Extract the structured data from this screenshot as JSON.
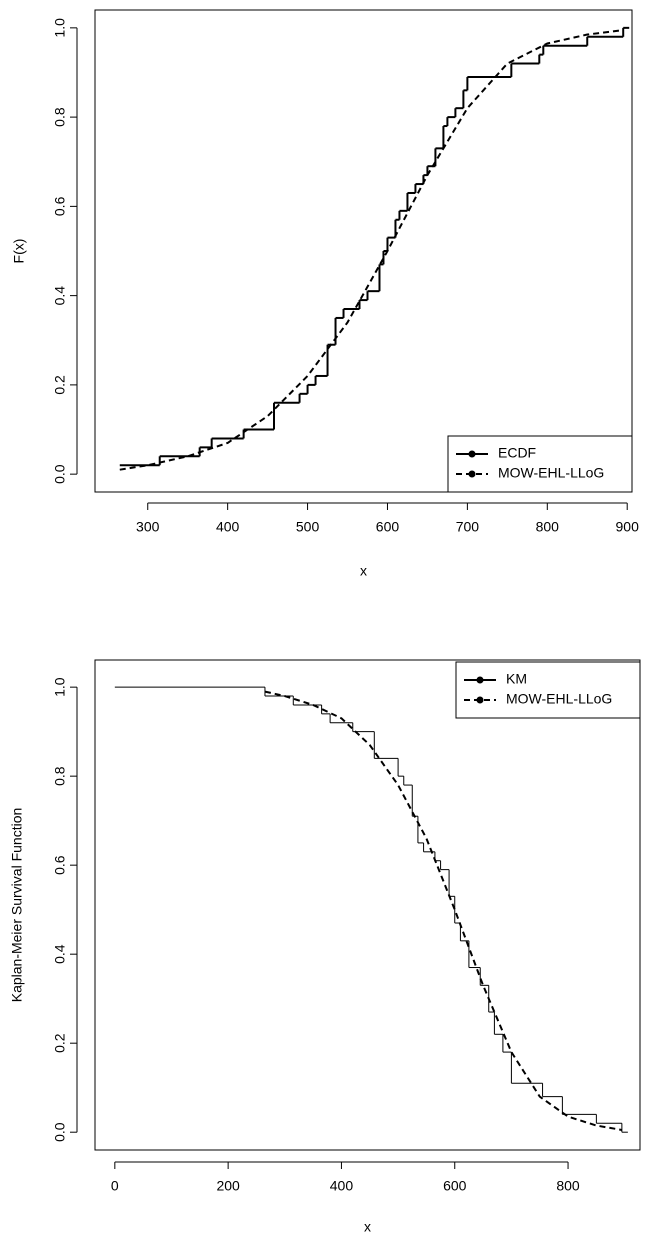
{
  "chart_data": [
    {
      "type": "line",
      "xlabel": "x",
      "ylabel": "F(x)",
      "xlim": [
        234,
        906
      ],
      "ylim": [
        -0.04,
        1.04
      ],
      "xticks": [
        300,
        400,
        500,
        600,
        700,
        800,
        900
      ],
      "yticks": [
        {
          "value": 0,
          "label": "0.0"
        },
        0.2,
        0.4,
        0.6,
        0.8,
        {
          "value": 1,
          "label": "1.0"
        }
      ],
      "legend": "bottomright",
      "series": [
        {
          "name": "ECDF",
          "color": "#000000",
          "linestyle": "solid",
          "drawstyle": "steps-post",
          "linewidth": 2,
          "x": [
            265,
            315,
            365,
            380,
            420,
            458,
            490,
            500,
            510,
            525,
            535,
            545,
            565,
            575,
            590,
            595,
            600,
            610,
            615,
            625,
            635,
            645,
            650,
            660,
            670,
            675,
            685,
            695,
            700,
            755,
            790,
            795,
            850,
            895
          ],
          "values": [
            0.02,
            0.04,
            0.06,
            0.08,
            0.1,
            0.16,
            0.18,
            0.2,
            0.22,
            0.29,
            0.35,
            0.37,
            0.39,
            0.41,
            0.47,
            0.5,
            0.53,
            0.57,
            0.59,
            0.63,
            0.65,
            0.67,
            0.69,
            0.73,
            0.78,
            0.8,
            0.82,
            0.86,
            0.89,
            0.92,
            0.94,
            0.96,
            0.98,
            1.0
          ]
        },
        {
          "name": "MOW-EHL-LLoG",
          "color": "#000000",
          "linestyle": "dashed",
          "drawstyle": "default",
          "linewidth": 2,
          "x": [
            265,
            300,
            350,
            400,
            450,
            500,
            550,
            600,
            650,
            700,
            750,
            800,
            850,
            895
          ],
          "values": [
            0.01,
            0.02,
            0.04,
            0.07,
            0.13,
            0.22,
            0.34,
            0.5,
            0.67,
            0.82,
            0.92,
            0.965,
            0.985,
            0.995
          ]
        }
      ]
    },
    {
      "type": "line",
      "xlabel": "x",
      "ylabel": "Kaplan-Meier Survival Function",
      "xlim": [
        -35,
        927
      ],
      "ylim": [
        -0.04,
        1.061
      ],
      "xticks": [
        0,
        200,
        400,
        600,
        800
      ],
      "yticks": [
        {
          "value": 0,
          "label": "0.0"
        },
        0.2,
        0.4,
        0.6,
        0.8,
        {
          "value": 1,
          "label": "1.0"
        }
      ],
      "legend": "topright",
      "series": [
        {
          "name": "KM",
          "color": "#000000",
          "linestyle": "solid",
          "drawstyle": "steps-post",
          "linewidth": 1,
          "x": [
            0,
            265,
            315,
            365,
            380,
            420,
            458,
            500,
            510,
            525,
            535,
            545,
            565,
            575,
            590,
            600,
            610,
            625,
            645,
            660,
            670,
            685,
            700,
            755,
            790,
            850,
            895
          ],
          "values": [
            1.0,
            0.98,
            0.96,
            0.94,
            0.92,
            0.9,
            0.84,
            0.8,
            0.78,
            0.71,
            0.65,
            0.63,
            0.61,
            0.59,
            0.53,
            0.47,
            0.43,
            0.37,
            0.33,
            0.27,
            0.22,
            0.18,
            0.11,
            0.08,
            0.04,
            0.02,
            0.0
          ]
        },
        {
          "name": "MOW-EHL-LLoG",
          "color": "#000000",
          "linestyle": "dashed",
          "drawstyle": "default",
          "linewidth": 2,
          "x": [
            265,
            300,
            350,
            400,
            450,
            500,
            550,
            600,
            650,
            700,
            750,
            800,
            850,
            895
          ],
          "values": [
            0.99,
            0.98,
            0.96,
            0.93,
            0.87,
            0.78,
            0.66,
            0.5,
            0.33,
            0.18,
            0.08,
            0.035,
            0.015,
            0.005
          ]
        }
      ]
    }
  ]
}
